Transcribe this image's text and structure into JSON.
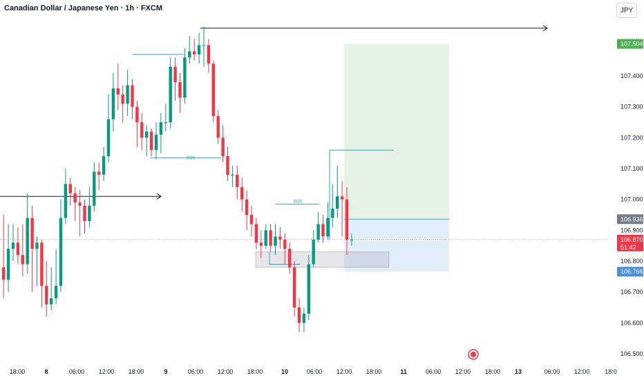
{
  "header": {
    "title": "Canadian Dollar / Japanese Yen · 1h · FXCM",
    "currency": "JPY"
  },
  "colors": {
    "up": "#089981",
    "down": "#f23645",
    "bos_line": "#26a6c4",
    "profit_zone": "#e6f2e5",
    "stop_zone": "#e3eefb",
    "current_price": "#f23645",
    "target_badge": "#4caf50",
    "entry_badge": "#787b86",
    "stop_badge": "#4a90e2"
  },
  "chart_data": {
    "type": "candlestick",
    "symbol": "CADJPY",
    "timeframe": "1h",
    "source": "FXCM",
    "ylim": [
      106.5,
      107.57
    ],
    "y_ticks": [
      "107.400",
      "107.300",
      "107.200",
      "107.100",
      "107.000",
      "106.900",
      "106.800",
      "106.700",
      "106.600",
      "106.500"
    ],
    "x_ticks": [
      "18:00",
      "8",
      "06:00",
      "12:00",
      "18:00",
      "9",
      "06:00",
      "12:00",
      "18:00",
      "10",
      "06:00",
      "12:00",
      "18:00",
      "11",
      "06:00",
      "12:00",
      "18:00",
      "13",
      "06:00",
      "12:00",
      "18:0"
    ],
    "current_price": "106.870",
    "countdown": "51:42",
    "position": {
      "target": "107.504",
      "entry": "106.936",
      "stop": "106.766"
    },
    "annotations": [
      {
        "label": "BOS",
        "level": 107.135
      },
      {
        "label": "BOS",
        "level": 106.985
      }
    ],
    "candles": [
      [
        106.78,
        106.74,
        106.95,
        106.68
      ],
      [
        106.74,
        106.84,
        106.92,
        106.7
      ],
      [
        106.84,
        106.86,
        106.92,
        106.8
      ],
      [
        106.86,
        106.82,
        106.91,
        106.79
      ],
      [
        106.82,
        106.79,
        106.92,
        106.75
      ],
      [
        106.79,
        106.94,
        107.02,
        106.76
      ],
      [
        106.94,
        106.84,
        106.98,
        106.7
      ],
      [
        106.84,
        106.86,
        106.88,
        106.72
      ],
      [
        106.86,
        106.72,
        106.87,
        106.65
      ],
      [
        106.72,
        106.66,
        106.8,
        106.62
      ],
      [
        106.66,
        106.68,
        106.78,
        106.64
      ],
      [
        106.68,
        106.72,
        106.84,
        106.66
      ],
      [
        106.72,
        106.94,
        107.0,
        106.7
      ],
      [
        106.94,
        107.05,
        107.1,
        106.92
      ],
      [
        107.05,
        107.02,
        107.07,
        106.98
      ],
      [
        107.02,
        106.99,
        107.04,
        106.93
      ],
      [
        106.99,
        106.98,
        107.03,
        106.88
      ],
      [
        106.98,
        106.93,
        107.0,
        106.89
      ],
      [
        106.93,
        106.98,
        107.04,
        106.91
      ],
      [
        106.98,
        107.09,
        107.12,
        106.96
      ],
      [
        107.09,
        107.08,
        107.12,
        107.03
      ],
      [
        107.08,
        107.14,
        107.17,
        107.06
      ],
      [
        107.14,
        107.26,
        107.34,
        107.12
      ],
      [
        107.26,
        107.36,
        107.41,
        107.22
      ],
      [
        107.36,
        107.34,
        107.44,
        107.29
      ],
      [
        107.34,
        107.31,
        107.37,
        107.25
      ],
      [
        107.31,
        107.37,
        107.42,
        107.27
      ],
      [
        107.37,
        107.3,
        107.39,
        107.26
      ],
      [
        107.3,
        107.25,
        107.32,
        107.17
      ],
      [
        107.25,
        107.2,
        107.28,
        107.16
      ],
      [
        107.2,
        107.22,
        107.24,
        107.14
      ],
      [
        107.22,
        107.16,
        107.23,
        107.14
      ],
      [
        107.16,
        107.21,
        107.25,
        107.13
      ],
      [
        107.21,
        107.25,
        107.28,
        107.15
      ],
      [
        107.25,
        107.25,
        107.31,
        107.22
      ],
      [
        107.25,
        107.43,
        107.46,
        107.23
      ],
      [
        107.43,
        107.38,
        107.46,
        107.32
      ],
      [
        107.38,
        107.33,
        107.41,
        107.28
      ],
      [
        107.33,
        107.46,
        107.49,
        107.31
      ],
      [
        107.46,
        107.48,
        107.53,
        107.44
      ],
      [
        107.48,
        107.47,
        107.52,
        107.45
      ],
      [
        107.47,
        107.5,
        107.54,
        107.44
      ],
      [
        107.5,
        107.5,
        107.56,
        107.43
      ],
      [
        107.5,
        107.44,
        107.52,
        107.41
      ],
      [
        107.44,
        107.27,
        107.45,
        107.25
      ],
      [
        107.27,
        107.2,
        107.29,
        107.18
      ],
      [
        107.2,
        107.14,
        107.24,
        107.12
      ],
      [
        107.14,
        107.08,
        107.17,
        107.06
      ],
      [
        107.08,
        107.08,
        107.11,
        107.04
      ],
      [
        107.08,
        107.04,
        107.11,
        107.0
      ],
      [
        107.04,
        107.0,
        107.07,
        106.96
      ],
      [
        107.0,
        106.95,
        107.03,
        106.9
      ],
      [
        106.95,
        106.92,
        106.98,
        106.88
      ],
      [
        106.92,
        106.86,
        106.94,
        106.84
      ],
      [
        106.86,
        106.85,
        106.9,
        106.81
      ],
      [
        106.85,
        106.9,
        106.92,
        106.84
      ],
      [
        106.9,
        106.85,
        106.92,
        106.83
      ],
      [
        106.85,
        106.88,
        106.92,
        106.82
      ],
      [
        106.88,
        106.87,
        106.91,
        106.84
      ],
      [
        106.87,
        106.84,
        106.89,
        106.79
      ],
      [
        106.84,
        106.78,
        106.86,
        106.76
      ],
      [
        106.78,
        106.65,
        106.8,
        106.62
      ],
      [
        106.65,
        106.6,
        106.68,
        106.57
      ],
      [
        106.6,
        106.63,
        106.65,
        106.57
      ],
      [
        106.63,
        106.79,
        106.82,
        106.61
      ],
      [
        106.79,
        106.87,
        106.9,
        106.78
      ],
      [
        106.87,
        106.92,
        106.96,
        106.86
      ],
      [
        106.92,
        106.88,
        106.95,
        106.86
      ],
      [
        106.88,
        106.94,
        106.99,
        106.87
      ],
      [
        106.94,
        106.97,
        107.05,
        106.91
      ],
      [
        106.97,
        107.01,
        107.11,
        106.94
      ],
      [
        107.01,
        107.0,
        107.06,
        106.88
      ],
      [
        107.0,
        106.87,
        107.04,
        106.82
      ],
      [
        106.87,
        106.87,
        106.89,
        106.85
      ]
    ]
  }
}
